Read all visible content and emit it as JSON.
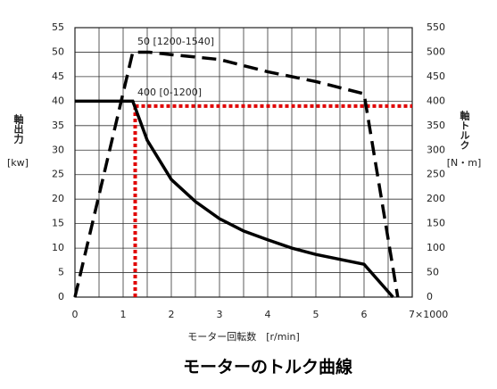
{
  "chart_data": {
    "type": "line",
    "title": "モーターのトルク曲線",
    "x_label": "モーター回転数　[r/min]",
    "y_label": "軸出力",
    "y_unit": "[kw]",
    "y2_label": "軸トルク",
    "y2_unit": "[N・m]",
    "xlim": [
      0,
      7
    ],
    "xticks": [
      0,
      1,
      2,
      3,
      4,
      5,
      6,
      {
        "value": 7,
        "label": "7×1000"
      }
    ],
    "ylim": [
      0,
      55
    ],
    "yticks": [
      0,
      5,
      10,
      15,
      20,
      25,
      30,
      35,
      40,
      45,
      50,
      55
    ],
    "y2lim": [
      0,
      550
    ],
    "y2ticks": [
      0,
      50,
      100,
      150,
      200,
      250,
      300,
      350,
      400,
      450,
      500,
      550
    ],
    "grid": true,
    "series": [
      {
        "name": "50 [1200-1540]",
        "color": "#000000",
        "line_style": "dashed",
        "x": [
          0,
          1.2,
          1.54,
          2,
          3,
          4,
          5,
          6,
          6.7
        ],
        "values": [
          0,
          50,
          50,
          49.5,
          48.5,
          46,
          44,
          41.5,
          0
        ]
      },
      {
        "name": "400 [0-1200]",
        "color": "#000000",
        "line_style": "solid",
        "axis": "y2",
        "x": [
          0,
          1.2,
          1.5,
          2,
          2.5,
          3,
          3.5,
          4,
          4.5,
          5,
          5.5,
          6,
          6.6
        ],
        "values": [
          400,
          400,
          320,
          240,
          195,
          160,
          135,
          117,
          100,
          87,
          77,
          67,
          0
        ]
      }
    ],
    "reference": {
      "color": "#e00000",
      "x": 1.25,
      "y": 39
    }
  }
}
